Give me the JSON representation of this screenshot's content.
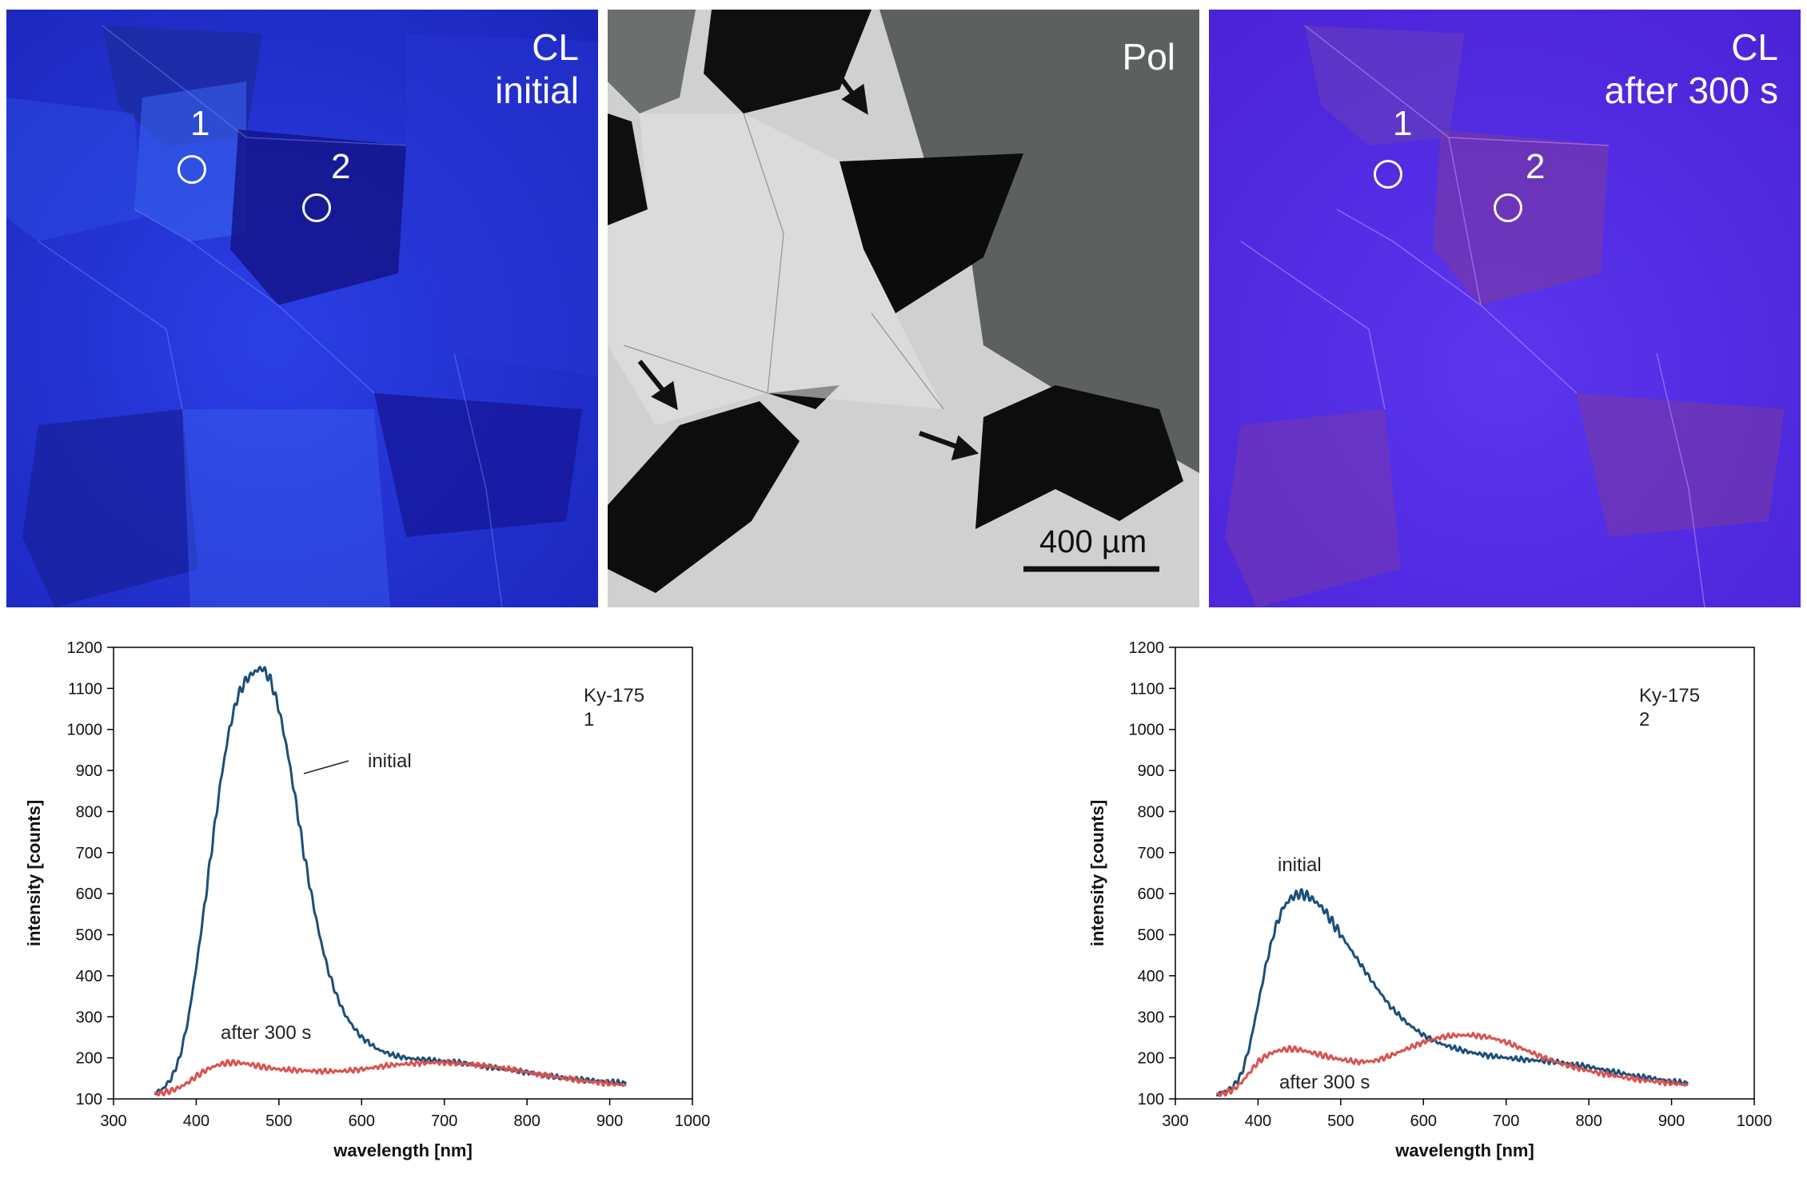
{
  "panels": {
    "cl_initial": {
      "label_line1": "CL",
      "label_line2": "initial",
      "point1": "1",
      "point2": "2"
    },
    "pol": {
      "label": "Pol",
      "scale_bar": "400 µm"
    },
    "cl_after": {
      "label_line1": "CL",
      "label_line2": "after 300 s",
      "point1": "1",
      "point2": "2"
    }
  },
  "colors": {
    "initial": "#1a4f7a",
    "after": "#d9534f",
    "cl_blue": "#2233cc",
    "cl_violet": "#5a2ee0"
  },
  "chart_data": [
    {
      "type": "line",
      "title": "",
      "sample_label_line1": "Ky-175",
      "sample_label_line2": "1",
      "xlabel": "wavelength [nm]",
      "ylabel": "intensity [counts]",
      "xlim": [
        300,
        1000
      ],
      "ylim": [
        100,
        1200
      ],
      "xticks": [
        300,
        400,
        500,
        600,
        700,
        800,
        900,
        1000
      ],
      "yticks": [
        100,
        200,
        300,
        400,
        500,
        600,
        700,
        800,
        900,
        1000,
        1100,
        1200
      ],
      "grid": false,
      "series": [
        {
          "name": "initial",
          "x": [
            350,
            360,
            370,
            380,
            390,
            400,
            410,
            420,
            430,
            440,
            450,
            460,
            470,
            480,
            490,
            500,
            510,
            520,
            530,
            540,
            550,
            560,
            570,
            580,
            590,
            600,
            620,
            640,
            660,
            680,
            700,
            720,
            740,
            760,
            780,
            800,
            820,
            840,
            860,
            880,
            900,
            920
          ],
          "y": [
            115,
            125,
            150,
            200,
            290,
            420,
            570,
            730,
            880,
            1000,
            1080,
            1120,
            1140,
            1150,
            1120,
            1050,
            950,
            830,
            700,
            590,
            490,
            410,
            350,
            305,
            275,
            250,
            220,
            205,
            198,
            195,
            192,
            188,
            182,
            176,
            170,
            165,
            158,
            152,
            148,
            145,
            142,
            138
          ]
        },
        {
          "name": "after 300 s",
          "x": [
            350,
            360,
            370,
            380,
            390,
            400,
            410,
            420,
            430,
            440,
            450,
            460,
            470,
            480,
            490,
            500,
            520,
            540,
            560,
            580,
            600,
            620,
            640,
            660,
            680,
            700,
            720,
            740,
            760,
            780,
            800,
            820,
            840,
            860,
            880,
            900,
            920
          ],
          "y": [
            112,
            115,
            120,
            128,
            140,
            155,
            168,
            178,
            185,
            188,
            188,
            186,
            182,
            178,
            175,
            172,
            170,
            168,
            167,
            168,
            172,
            178,
            183,
            186,
            188,
            188,
            186,
            183,
            178,
            172,
            165,
            158,
            152,
            146,
            141,
            137,
            133
          ]
        }
      ],
      "annotations": [
        "initial",
        "after 300 s"
      ]
    },
    {
      "type": "line",
      "title": "",
      "sample_label_line1": "Ky-175",
      "sample_label_line2": "2",
      "xlabel": "wavelength [nm]",
      "ylabel": "intensity [counts]",
      "xlim": [
        300,
        1000
      ],
      "ylim": [
        100,
        1200
      ],
      "xticks": [
        300,
        400,
        500,
        600,
        700,
        800,
        900,
        1000
      ],
      "yticks": [
        100,
        200,
        300,
        400,
        500,
        600,
        700,
        800,
        900,
        1000,
        1100,
        1200
      ],
      "grid": false,
      "series": [
        {
          "name": "initial",
          "x": [
            350,
            360,
            370,
            380,
            390,
            400,
            410,
            420,
            430,
            440,
            450,
            460,
            470,
            480,
            490,
            500,
            520,
            540,
            560,
            580,
            600,
            620,
            640,
            660,
            680,
            700,
            720,
            740,
            760,
            780,
            800,
            820,
            840,
            860,
            880,
            900,
            920
          ],
          "y": [
            112,
            118,
            130,
            160,
            230,
            330,
            430,
            510,
            565,
            590,
            600,
            595,
            580,
            560,
            530,
            500,
            440,
            380,
            325,
            285,
            255,
            235,
            222,
            212,
            205,
            200,
            196,
            193,
            190,
            185,
            178,
            170,
            162,
            155,
            149,
            143,
            138
          ]
        },
        {
          "name": "after 300 s",
          "x": [
            350,
            360,
            370,
            380,
            390,
            400,
            410,
            420,
            430,
            440,
            450,
            460,
            470,
            480,
            490,
            500,
            520,
            540,
            560,
            580,
            600,
            620,
            640,
            660,
            680,
            700,
            720,
            740,
            760,
            780,
            800,
            820,
            840,
            860,
            880,
            900,
            920
          ],
          "y": [
            110,
            114,
            122,
            140,
            165,
            190,
            205,
            215,
            220,
            222,
            220,
            215,
            210,
            205,
            200,
            196,
            190,
            192,
            205,
            222,
            238,
            250,
            255,
            255,
            250,
            238,
            222,
            205,
            190,
            178,
            168,
            160,
            153,
            147,
            142,
            138,
            134
          ]
        }
      ],
      "annotations": [
        "initial",
        "after 300 s"
      ]
    }
  ]
}
